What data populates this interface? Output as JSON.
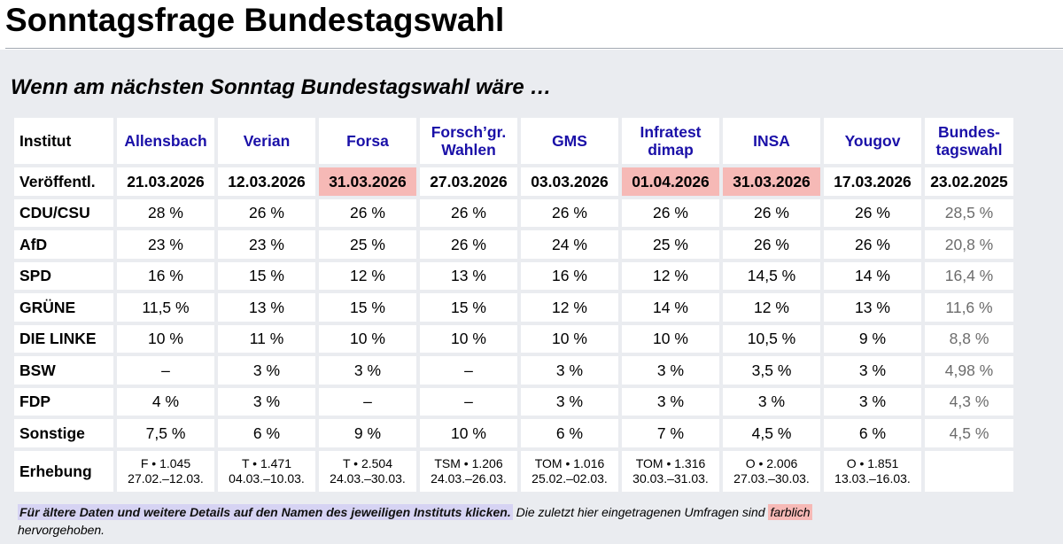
{
  "page": {
    "title": "Sonntagsfrage Bundestagswahl",
    "subtitle": "Wenn am nächsten Sonntag Bundestagswahl wäre …"
  },
  "colors": {
    "institute_link": "#1a10a8",
    "highlight": "#f6b9b6",
    "panel_bg": "#eaecf0",
    "hint_bg": "#d6d3f3",
    "election_text": "#6c6c6c"
  },
  "table": {
    "corner_label": "Institut",
    "date_label": "Veröffentl.",
    "erhebung_label": "Erhebung",
    "institutes": [
      {
        "line1": "Allensbach",
        "line2": "",
        "date": "21.03.2026",
        "highlight": false,
        "method": "F • 1.045",
        "period": "27.02.–12.03."
      },
      {
        "line1": "Verian",
        "line2": "",
        "date": "12.03.2026",
        "highlight": false,
        "method": "T • 1.471",
        "period": "04.03.–10.03."
      },
      {
        "line1": "Forsa",
        "line2": "",
        "date": "31.03.2026",
        "highlight": true,
        "method": "T • 2.504",
        "period": "24.03.–30.03."
      },
      {
        "line1": "Forsch’gr.",
        "line2": "Wahlen",
        "date": "27.03.2026",
        "highlight": false,
        "method": "TSM • 1.206",
        "period": "24.03.–26.03."
      },
      {
        "line1": "GMS",
        "line2": "",
        "date": "03.03.2026",
        "highlight": false,
        "method": "TOM • 1.016",
        "period": "25.02.–02.03."
      },
      {
        "line1": "Infratest",
        "line2": "dimap",
        "date": "01.04.2026",
        "highlight": true,
        "method": "TOM • 1.316",
        "period": "30.03.–31.03."
      },
      {
        "line1": "INSA",
        "line2": "",
        "date": "31.03.2026",
        "highlight": true,
        "method": "O • 2.006",
        "period": "27.03.–30.03."
      },
      {
        "line1": "Yougov",
        "line2": "",
        "date": "17.03.2026",
        "highlight": false,
        "method": "O • 1.851",
        "period": "13.03.–16.03."
      }
    ],
    "election": {
      "line1": "Bundes-",
      "line2": "tagswahl",
      "date": "23.02.2025"
    },
    "parties": [
      {
        "name": "CDU/CSU",
        "values": [
          "28 %",
          "26 %",
          "26 %",
          "26 %",
          "26 %",
          "26 %",
          "26 %",
          "26 %"
        ],
        "election": "28,5 %"
      },
      {
        "name": "AfD",
        "values": [
          "23 %",
          "23 %",
          "25 %",
          "26 %",
          "24 %",
          "25 %",
          "26 %",
          "26 %"
        ],
        "election": "20,8 %"
      },
      {
        "name": "SPD",
        "values": [
          "16 %",
          "15 %",
          "12 %",
          "13 %",
          "16 %",
          "12 %",
          "14,5 %",
          "14 %"
        ],
        "election": "16,4 %"
      },
      {
        "name": "GRÜNE",
        "values": [
          "11,5 %",
          "13 %",
          "15 %",
          "15 %",
          "12 %",
          "14 %",
          "12 %",
          "13 %"
        ],
        "election": "11,6 %"
      },
      {
        "name": "DIE LINKE",
        "values": [
          "10 %",
          "11 %",
          "10 %",
          "10 %",
          "10 %",
          "10 %",
          "10,5 %",
          "9 %"
        ],
        "election": "8,8 %"
      },
      {
        "name": "BSW",
        "values": [
          "–",
          "3 %",
          "3 %",
          "–",
          "3 %",
          "3 %",
          "3,5 %",
          "3 %"
        ],
        "election": "4,98 %"
      },
      {
        "name": "FDP",
        "values": [
          "4 %",
          "3 %",
          "–",
          "–",
          "3 %",
          "3 %",
          "3 %",
          "3 %"
        ],
        "election": "4,3 %"
      },
      {
        "name": "Sonstige",
        "values": [
          "7,5 %",
          "6 %",
          "9 %",
          "10 %",
          "6 %",
          "7 %",
          "4,5 %",
          "6 %"
        ],
        "election": "4,5 %"
      }
    ]
  },
  "note": {
    "hint": "Für ältere Daten und weitere Details auf den Namen des jeweiligen Instituts klicken.",
    "text": "Die zuletzt hier eingetragenen Umfragen sind",
    "mark": "farblich",
    "text2": "hervorgehoben."
  }
}
